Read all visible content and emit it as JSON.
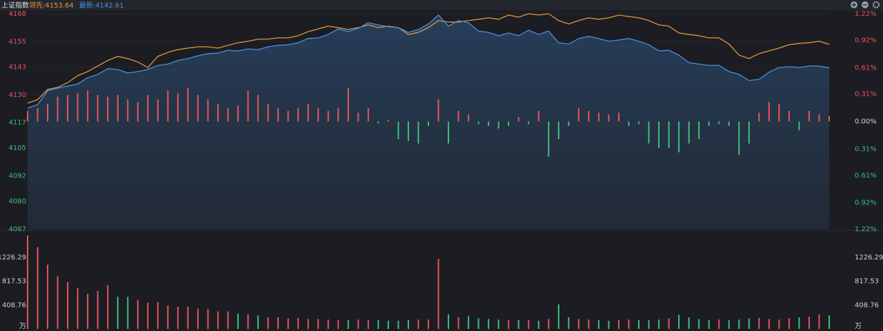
{
  "chart_data": [
    {
      "type": "line",
      "title": "上证指数",
      "ylim": [
        4067,
        4168
      ],
      "yticks": [
        4168,
        4155,
        4143,
        4130,
        4117,
        4105,
        4092,
        4080,
        4067
      ],
      "y2lim": [
        -1.22,
        1.22
      ],
      "y2ticks": [
        {
          "value": 1.22,
          "label": "1.22%"
        },
        {
          "value": 0.92,
          "label": "0.92%"
        },
        {
          "value": 0.61,
          "label": "0.61%"
        },
        {
          "value": 0.31,
          "label": "0.31%"
        },
        {
          "value": 0,
          "label": "0.00%"
        },
        {
          "value": -0.31,
          "label": "0.31%"
        },
        {
          "value": -0.61,
          "label": "0.61%"
        },
        {
          "value": -0.92,
          "label": "0.92%"
        },
        {
          "value": -1.22,
          "label": "1.22%"
        }
      ],
      "grid": true,
      "up_color": "#e8545a",
      "down_color": "#3fbf7f",
      "flat_color": "#cfd3da",
      "series": [
        {
          "name": "领先:4153.64",
          "color": "#e8953a",
          "values": [
            4126.1,
            4127.7,
            4132.5,
            4133.5,
            4135.7,
            4139.0,
            4140.9,
            4143.5,
            4146.1,
            4148.0,
            4147.0,
            4145.4,
            4142.8,
            4148.0,
            4149.9,
            4151.2,
            4151.9,
            4152.5,
            4152.5,
            4151.9,
            4153.2,
            4154.4,
            4155.1,
            4156.1,
            4156.1,
            4156.7,
            4156.7,
            4157.7,
            4159.6,
            4160.9,
            4162.2,
            4161.5,
            4160.6,
            4161.5,
            4162.8,
            4161.5,
            4162.2,
            4161.5,
            4158.3,
            4159.3,
            4161.5,
            4164.8,
            4164.1,
            4164.1,
            4164.8,
            4165.4,
            4166.1,
            4165.4,
            4167.4,
            4166.4,
            4168.0,
            4167.4,
            4168.0,
            4164.8,
            4163.2,
            4164.8,
            4166.1,
            4165.4,
            4166.1,
            4167.4,
            4166.7,
            4166.1,
            4164.8,
            4162.8,
            4162.2,
            4159.0,
            4158.3,
            4157.7,
            4156.7,
            4156.7,
            4153.8,
            4148.6,
            4147.0,
            4149.3,
            4150.6,
            4151.9,
            4153.5,
            4154.1,
            4154.4,
            4155.1,
            4153.64
          ]
        },
        {
          "name": "最新:4142.61",
          "color": "#4a8fe0",
          "values": [
            4123.8,
            4125.4,
            4131.9,
            4133.1,
            4134.1,
            4135.1,
            4138.0,
            4139.6,
            4142.2,
            4141.9,
            4140.2,
            4140.9,
            4141.9,
            4143.8,
            4144.4,
            4146.1,
            4147.0,
            4148.3,
            4149.3,
            4149.6,
            4150.9,
            4150.6,
            4151.5,
            4151.2,
            4152.5,
            4153.2,
            4153.5,
            4154.4,
            4156.4,
            4156.7,
            4158.3,
            4160.9,
            4159.6,
            4161.2,
            4163.8,
            4162.8,
            4161.9,
            4161.5,
            4159.3,
            4160.6,
            4163.2,
            4167.4,
            4162.2,
            4164.8,
            4163.8,
            4159.9,
            4159.3,
            4157.7,
            4159.0,
            4157.7,
            4160.3,
            4158.3,
            4159.9,
            4154.4,
            4153.8,
            4156.4,
            4157.4,
            4156.4,
            4155.1,
            4155.7,
            4156.4,
            4155.1,
            4153.5,
            4150.6,
            4150.9,
            4148.6,
            4145.1,
            4144.4,
            4143.8,
            4143.8,
            4140.9,
            4139.6,
            4136.7,
            4137.3,
            4140.6,
            4142.8,
            4143.2,
            4142.8,
            4143.5,
            4143.5,
            4142.61
          ]
        }
      ],
      "bars": {
        "axis": "y2",
        "values": [
          0.12,
          0.15,
          0.2,
          0.28,
          0.3,
          0.32,
          0.35,
          0.3,
          0.28,
          0.3,
          0.25,
          0.22,
          0.3,
          0.25,
          0.35,
          0.32,
          0.38,
          0.3,
          0.25,
          0.2,
          0.15,
          0.18,
          0.35,
          0.3,
          0.2,
          0.15,
          0.12,
          0.15,
          0.2,
          0.15,
          0.12,
          0.15,
          0.38,
          0.1,
          0.15,
          -0.02,
          0.02,
          -0.2,
          -0.22,
          -0.25,
          -0.05,
          0.25,
          -0.25,
          0.12,
          0.08,
          -0.03,
          -0.05,
          -0.08,
          -0.05,
          0.05,
          -0.03,
          0.12,
          -0.4,
          -0.2,
          -0.05,
          0.15,
          0.12,
          0.1,
          0.08,
          0.1,
          -0.05,
          -0.03,
          -0.25,
          -0.3,
          -0.3,
          -0.35,
          -0.25,
          -0.2,
          -0.05,
          -0.03,
          -0.05,
          -0.38,
          -0.25,
          0.1,
          0.22,
          0.2,
          0.12,
          -0.1,
          0.12,
          0.08,
          0.06
        ]
      }
    },
    {
      "type": "bar",
      "ylim": [
        0,
        1660
      ],
      "yticks": [
        1226.29,
        817.53,
        408.76,
        {
          "value": 0,
          "label": "万"
        }
      ],
      "values": [
        1600,
        1400,
        1100,
        900,
        800,
        700,
        600,
        650,
        750,
        550,
        550,
        500,
        450,
        460,
        400,
        380,
        380,
        350,
        340,
        300,
        300,
        260,
        250,
        230,
        200,
        200,
        180,
        190,
        170,
        170,
        160,
        150,
        150,
        160,
        150,
        150,
        140,
        140,
        150,
        160,
        160,
        1200,
        250,
        200,
        220,
        180,
        170,
        160,
        150,
        150,
        150,
        140,
        170,
        420,
        200,
        170,
        160,
        150,
        140,
        150,
        160,
        150,
        150,
        160,
        180,
        240,
        200,
        170,
        150,
        160,
        150,
        160,
        180,
        190,
        170,
        160,
        180,
        200,
        210,
        250,
        230
      ]
    }
  ]
}
